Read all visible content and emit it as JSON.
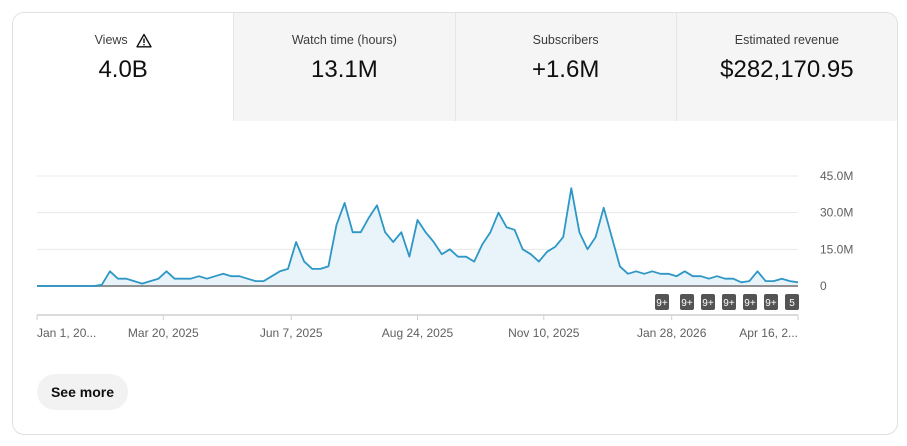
{
  "metrics": [
    {
      "label": "Views",
      "value": "4.0B",
      "icon": "warning-icon",
      "active": true
    },
    {
      "label": "Watch time (hours)",
      "value": "13.1M"
    },
    {
      "label": "Subscribers",
      "value": "+1.6M"
    },
    {
      "label": "Estimated revenue",
      "value": "$282,170.95"
    }
  ],
  "see_more_label": "See more",
  "colors": {
    "line": "#2e97c6",
    "fill": "#e8f4fa",
    "badge": "#545454"
  },
  "chart_data": {
    "type": "area",
    "x_range": [
      "2025-01-01",
      "2026-04-16"
    ],
    "ylim": [
      0,
      45000000
    ],
    "y_ticks": [
      {
        "value": 0,
        "label": "0"
      },
      {
        "value": 15000000,
        "label": "15.0M"
      },
      {
        "value": 30000000,
        "label": "30.0M"
      },
      {
        "value": 45000000,
        "label": "45.0M"
      }
    ],
    "x_ticks": [
      {
        "date": "2025-01-01",
        "label": "Jan 1, 20..."
      },
      {
        "date": "2025-03-20",
        "label": "Mar 20, 2025"
      },
      {
        "date": "2025-06-07",
        "label": "Jun 7, 2025"
      },
      {
        "date": "2025-08-24",
        "label": "Aug 24, 2025"
      },
      {
        "date": "2025-11-10",
        "label": "Nov 10, 2025"
      },
      {
        "date": "2026-01-28",
        "label": "Jan 28, 2026"
      },
      {
        "date": "2026-04-16",
        "label": "Apr 16, 2..."
      }
    ],
    "grid": true,
    "x": [
      "2025-01-01",
      "2025-01-06",
      "2025-01-11",
      "2025-01-16",
      "2025-01-21",
      "2025-01-26",
      "2025-01-31",
      "2025-02-05",
      "2025-02-10",
      "2025-02-15",
      "2025-02-20",
      "2025-02-25",
      "2025-03-02",
      "2025-03-07",
      "2025-03-12",
      "2025-03-17",
      "2025-03-22",
      "2025-03-27",
      "2025-04-01",
      "2025-04-06",
      "2025-04-11",
      "2025-04-16",
      "2025-04-21",
      "2025-04-26",
      "2025-05-01",
      "2025-05-06",
      "2025-05-11",
      "2025-05-16",
      "2025-05-21",
      "2025-05-26",
      "2025-05-31",
      "2025-06-05",
      "2025-06-10",
      "2025-06-15",
      "2025-06-20",
      "2025-06-25",
      "2025-06-30",
      "2025-07-05",
      "2025-07-10",
      "2025-07-15",
      "2025-07-20",
      "2025-07-25",
      "2025-07-30",
      "2025-08-04",
      "2025-08-09",
      "2025-08-14",
      "2025-08-19",
      "2025-08-24",
      "2025-08-29",
      "2025-09-03",
      "2025-09-08",
      "2025-09-13",
      "2025-09-18",
      "2025-09-23",
      "2025-09-28",
      "2025-10-03",
      "2025-10-08",
      "2025-10-13",
      "2025-10-18",
      "2025-10-23",
      "2025-10-28",
      "2025-11-02",
      "2025-11-07",
      "2025-11-12",
      "2025-11-17",
      "2025-11-22",
      "2025-11-27",
      "2025-12-02",
      "2025-12-07",
      "2025-12-12",
      "2025-12-17",
      "2025-12-22",
      "2025-12-27",
      "2026-01-01",
      "2026-01-06",
      "2026-01-11",
      "2026-01-16",
      "2026-01-21",
      "2026-01-26",
      "2026-01-31",
      "2026-02-05",
      "2026-02-10",
      "2026-02-15",
      "2026-02-20",
      "2026-02-25",
      "2026-03-02",
      "2026-03-07",
      "2026-03-12",
      "2026-03-17",
      "2026-03-22",
      "2026-03-27",
      "2026-04-01",
      "2026-04-06",
      "2026-04-11",
      "2026-04-16"
    ],
    "values": [
      0,
      0,
      0,
      0,
      0,
      0,
      0,
      0,
      500000,
      6000000,
      3000000,
      3000000,
      2000000,
      1000000,
      2000000,
      3000000,
      6000000,
      3000000,
      3000000,
      3000000,
      4000000,
      3000000,
      4000000,
      5000000,
      4000000,
      4000000,
      3000000,
      2000000,
      2000000,
      4000000,
      6000000,
      7000000,
      18000000,
      10000000,
      7000000,
      7000000,
      8000000,
      25000000,
      34000000,
      22000000,
      22000000,
      28000000,
      33000000,
      22000000,
      18000000,
      22000000,
      12000000,
      27000000,
      22000000,
      18000000,
      13000000,
      15000000,
      12000000,
      12000000,
      10000000,
      17000000,
      22000000,
      30000000,
      24000000,
      23000000,
      15000000,
      13000000,
      10000000,
      14000000,
      16000000,
      20000000,
      40000000,
      22000000,
      15000000,
      20000000,
      32000000,
      20000000,
      8000000,
      5000000,
      6000000,
      5000000,
      6000000,
      5000000,
      5000000,
      4000000,
      6000000,
      4000000,
      4000000,
      3000000,
      4000000,
      3000000,
      3000000,
      1500000,
      2000000,
      6000000,
      2000000,
      2000000,
      3000000,
      2000000,
      1500000
    ],
    "annotation_badges": [
      "9+",
      "9+",
      "9+",
      "9+",
      "9+",
      "9+",
      "5"
    ]
  }
}
